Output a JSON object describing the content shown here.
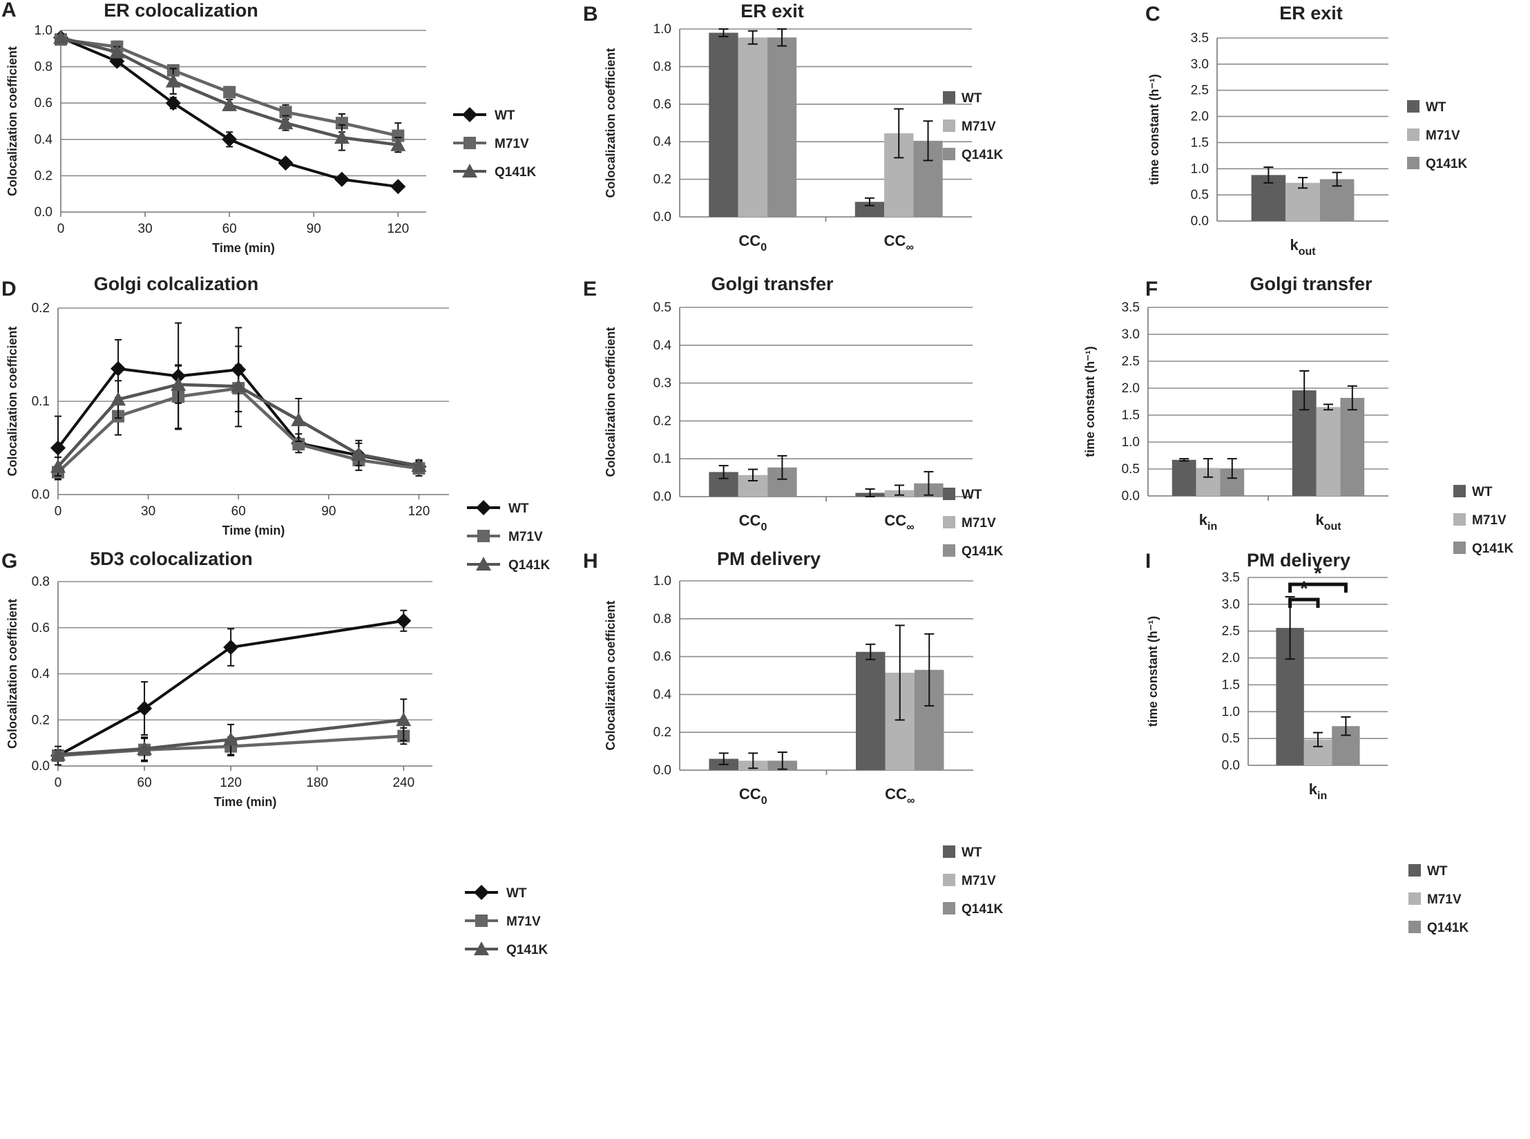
{
  "colors": {
    "WT_line": "#111111",
    "M71V_line": "#666666",
    "Q141K_line": "#555555",
    "WT_bar": "#5e5e5e",
    "M71V_bar": "#b3b3b3",
    "Q141K_bar": "#8e8e8e",
    "grid": "#8c8c8c",
    "axis": "#777777",
    "error": "#111111"
  },
  "chart_data": [
    {
      "id": "A",
      "type": "line",
      "letter": "A",
      "title": "ER colocalization",
      "xlabel": "Time (min)",
      "ylabel": "Colocalization coefficient",
      "x": [
        0,
        20,
        40,
        60,
        80,
        100,
        120
      ],
      "xticks": [
        0,
        30,
        60,
        90,
        120
      ],
      "xtick_labels": [
        "0",
        "30",
        "60",
        "90",
        "120"
      ],
      "xlim": [
        0,
        130
      ],
      "ylim": [
        0,
        1
      ],
      "yticks": [
        0,
        0.2,
        0.4,
        0.6,
        0.8,
        1.0
      ],
      "ytick_labels": [
        "0.0",
        "0.2",
        "0.4",
        "0.6",
        "0.8",
        "1.0"
      ],
      "series": [
        {
          "name": "WT",
          "marker": "diamond",
          "values": [
            0.96,
            0.83,
            0.6,
            0.4,
            0.27,
            0.18,
            0.14
          ],
          "errors": [
            0.02,
            0.02,
            0.03,
            0.04,
            0.02,
            0.01,
            0.01
          ]
        },
        {
          "name": "M71V",
          "marker": "square",
          "values": [
            0.95,
            0.91,
            0.78,
            0.66,
            0.55,
            0.49,
            0.42
          ],
          "errors": [
            0.02,
            0.03,
            0.02,
            0.02,
            0.04,
            0.05,
            0.07
          ]
        },
        {
          "name": "Q141K",
          "marker": "triangle",
          "values": [
            0.96,
            0.88,
            0.72,
            0.59,
            0.49,
            0.41,
            0.37
          ],
          "errors": [
            0.02,
            0.03,
            0.07,
            0.03,
            0.04,
            0.07,
            0.04
          ]
        }
      ],
      "legend": [
        "WT",
        "M71V",
        "Q141K"
      ]
    },
    {
      "id": "B",
      "type": "bar",
      "letter": "B",
      "title": "ER exit",
      "ylabel": "Colocalization coefficient",
      "categories": [
        "CC0",
        "CC∞"
      ],
      "category_base": [
        "CC",
        "CC"
      ],
      "category_sub": [
        "0",
        "∞"
      ],
      "ylim": [
        0,
        1
      ],
      "yticks": [
        0,
        0.2,
        0.4,
        0.6,
        0.8,
        1.0
      ],
      "ytick_labels": [
        "0.0",
        "0.2",
        "0.4",
        "0.6",
        "0.8",
        "1.0"
      ],
      "series": [
        {
          "name": "WT",
          "values": [
            0.98,
            0.08
          ],
          "errors": [
            0.02,
            0.02
          ]
        },
        {
          "name": "M71V",
          "values": [
            0.955,
            0.445
          ],
          "errors": [
            0.035,
            0.13
          ]
        },
        {
          "name": "Q141K",
          "values": [
            0.955,
            0.405
          ],
          "errors": [
            0.045,
            0.105
          ]
        }
      ],
      "legend": [
        "WT",
        "M71V",
        "Q141K"
      ]
    },
    {
      "id": "C",
      "type": "bar",
      "letter": "C",
      "title": "ER exit",
      "ylabel": "time constant (h⁻¹)",
      "categories": [
        "kout"
      ],
      "category_base": [
        "k"
      ],
      "category_sub": [
        "out"
      ],
      "ylim": [
        0,
        3.5
      ],
      "yticks": [
        0,
        0.5,
        1.0,
        1.5,
        2.0,
        2.5,
        3.0,
        3.5
      ],
      "ytick_labels": [
        "0.0",
        "0.5",
        "1.0",
        "1.5",
        "2.0",
        "2.5",
        "3.0",
        "3.5"
      ],
      "series": [
        {
          "name": "WT",
          "values": [
            0.88
          ],
          "errors": [
            0.15
          ]
        },
        {
          "name": "M71V",
          "values": [
            0.73
          ],
          "errors": [
            0.1
          ]
        },
        {
          "name": "Q141K",
          "values": [
            0.8
          ],
          "errors": [
            0.13
          ]
        }
      ],
      "legend": [
        "WT",
        "M71V",
        "Q141K"
      ]
    },
    {
      "id": "D",
      "type": "line",
      "letter": "D",
      "title": "Golgi colcalization",
      "xlabel": "Time (min)",
      "ylabel": "Colocalization coefficient",
      "x": [
        0,
        20,
        40,
        60,
        80,
        100,
        120
      ],
      "xticks": [
        0,
        30,
        60,
        90,
        120
      ],
      "xtick_labels": [
        "0",
        "30",
        "60",
        "90",
        "120"
      ],
      "xlim": [
        0,
        130
      ],
      "ylim": [
        0,
        0.2
      ],
      "yticks": [
        0,
        0.1,
        0.2
      ],
      "ytick_labels": [
        "0.0",
        "0.1",
        "0.2"
      ],
      "series": [
        {
          "name": "WT",
          "marker": "diamond",
          "values": [
            0.05,
            0.135,
            0.127,
            0.134,
            0.055,
            0.042,
            0.03
          ],
          "errors": [
            0.034,
            0.031,
            0.057,
            0.045,
            0.01,
            0.016,
            0.005
          ]
        },
        {
          "name": "M71V",
          "marker": "square",
          "values": [
            0.024,
            0.084,
            0.105,
            0.114,
            0.054,
            0.037,
            0.028
          ],
          "errors": [
            0.007,
            0.02,
            0.034,
            0.025,
            0.006,
            0.005,
            0.008
          ]
        },
        {
          "name": "Q141K",
          "marker": "triangle",
          "values": [
            0.03,
            0.102,
            0.118,
            0.116,
            0.08,
            0.043,
            0.031
          ],
          "errors": [
            0.01,
            0.02,
            0.02,
            0.043,
            0.023,
            0.012,
            0.006
          ]
        }
      ],
      "legend": [
        "WT",
        "M71V",
        "Q141K"
      ]
    },
    {
      "id": "E",
      "type": "bar",
      "letter": "E",
      "title": "Golgi transfer",
      "ylabel": "Colocalization coefficient",
      "categories": [
        "CC0",
        "CC∞"
      ],
      "category_base": [
        "CC",
        "CC"
      ],
      "category_sub": [
        "0",
        "∞"
      ],
      "ylim": [
        0,
        0.5
      ],
      "yticks": [
        0,
        0.1,
        0.2,
        0.3,
        0.4,
        0.5
      ],
      "ytick_labels": [
        "0.0",
        "0.1",
        "0.2",
        "0.3",
        "0.4",
        "0.5"
      ],
      "series": [
        {
          "name": "WT",
          "values": [
            0.065,
            0.01
          ],
          "errors": [
            0.017,
            0.01
          ]
        },
        {
          "name": "M71V",
          "values": [
            0.057,
            0.017
          ],
          "errors": [
            0.015,
            0.013
          ]
        },
        {
          "name": "Q141K",
          "values": [
            0.077,
            0.035
          ],
          "errors": [
            0.031,
            0.031
          ]
        }
      ],
      "legend": [
        "WT",
        "M71V",
        "Q141K"
      ]
    },
    {
      "id": "F",
      "type": "bar",
      "letter": "F",
      "title": "Golgi transfer",
      "ylabel": "time constant (h⁻¹)",
      "categories": [
        "kin",
        "kout"
      ],
      "category_base": [
        "k",
        "k"
      ],
      "category_sub": [
        "in",
        "out"
      ],
      "ylim": [
        0,
        3.5
      ],
      "yticks": [
        0,
        0.5,
        1.0,
        1.5,
        2.0,
        2.5,
        3.0,
        3.5
      ],
      "ytick_labels": [
        "0.0",
        "0.5",
        "1.0",
        "1.5",
        "2.0",
        "2.5",
        "3.0",
        "3.5"
      ],
      "series": [
        {
          "name": "WT",
          "values": [
            0.67,
            1.96
          ],
          "errors": [
            0.02,
            0.36
          ]
        },
        {
          "name": "M71V",
          "values": [
            0.52,
            1.65
          ],
          "errors": [
            0.17,
            0.05
          ]
        },
        {
          "name": "Q141K",
          "values": [
            0.51,
            1.82
          ],
          "errors": [
            0.18,
            0.22
          ]
        }
      ],
      "legend": [
        "WT",
        "M71V",
        "Q141K"
      ]
    },
    {
      "id": "G",
      "type": "line",
      "letter": "G",
      "title": "5D3 colocalization",
      "xlabel": "Time (min)",
      "ylabel": "Colocalization coefficient",
      "x": [
        0,
        60,
        120,
        240
      ],
      "xticks": [
        0,
        60,
        120,
        180,
        240
      ],
      "xtick_labels": [
        "0",
        "60",
        "120",
        "180",
        "240"
      ],
      "xlim": [
        0,
        260
      ],
      "ylim": [
        0,
        0.8
      ],
      "yticks": [
        0,
        0.2,
        0.4,
        0.6,
        0.8
      ],
      "ytick_labels": [
        "0.0",
        "0.2",
        "0.4",
        "0.6",
        "0.8"
      ],
      "series": [
        {
          "name": "WT",
          "marker": "diamond",
          "values": [
            0.045,
            0.25,
            0.515,
            0.63
          ],
          "errors": [
            0.04,
            0.115,
            0.08,
            0.045
          ]
        },
        {
          "name": "M71V",
          "marker": "square",
          "values": [
            0.045,
            0.07,
            0.085,
            0.13
          ],
          "errors": [
            0.02,
            0.05,
            0.04,
            0.035
          ]
        },
        {
          "name": "Q141K",
          "marker": "triangle",
          "values": [
            0.05,
            0.075,
            0.115,
            0.2
          ],
          "errors": [
            0.02,
            0.05,
            0.065,
            0.09
          ]
        }
      ],
      "legend": [
        "WT",
        "M71V",
        "Q141K"
      ]
    },
    {
      "id": "H",
      "type": "bar",
      "letter": "H",
      "title": "PM delivery",
      "ylabel": "Colocalization coefficient",
      "categories": [
        "CC0",
        "CC∞"
      ],
      "category_base": [
        "CC",
        "CC"
      ],
      "category_sub": [
        "0",
        "∞"
      ],
      "ylim": [
        0,
        1
      ],
      "yticks": [
        0,
        0.2,
        0.4,
        0.6,
        0.8,
        1.0
      ],
      "ytick_labels": [
        "0.0",
        "0.2",
        "0.4",
        "0.6",
        "0.8",
        "1.0"
      ],
      "series": [
        {
          "name": "WT",
          "values": [
            0.06,
            0.625
          ],
          "errors": [
            0.03,
            0.04
          ]
        },
        {
          "name": "M71V",
          "values": [
            0.05,
            0.515
          ],
          "errors": [
            0.04,
            0.25
          ]
        },
        {
          "name": "Q141K",
          "values": [
            0.05,
            0.53
          ],
          "errors": [
            0.045,
            0.19
          ]
        }
      ],
      "legend": [
        "WT",
        "M71V",
        "Q141K"
      ]
    },
    {
      "id": "I",
      "type": "bar",
      "letter": "I",
      "title": "PM delivery",
      "ylabel": "time constant (h⁻¹)",
      "categories": [
        "kin"
      ],
      "category_base": [
        "k"
      ],
      "category_sub": [
        "in"
      ],
      "ylim": [
        0,
        3.5
      ],
      "yticks": [
        0,
        0.5,
        1.0,
        1.5,
        2.0,
        2.5,
        3.0,
        3.5
      ],
      "ytick_labels": [
        "0.0",
        "0.5",
        "1.0",
        "1.5",
        "2.0",
        "2.5",
        "3.0",
        "3.5"
      ],
      "series": [
        {
          "name": "WT",
          "values": [
            2.56
          ],
          "errors": [
            0.58
          ]
        },
        {
          "name": "M71V",
          "values": [
            0.48
          ],
          "errors": [
            0.13
          ]
        },
        {
          "name": "Q141K",
          "values": [
            0.73
          ],
          "errors": [
            0.17
          ]
        }
      ],
      "legend": [
        "WT",
        "M71V",
        "Q141K"
      ],
      "annotations": [
        {
          "text": "*",
          "from": "WT",
          "to": "M71V"
        },
        {
          "text": "*",
          "from": "WT",
          "to": "Q141K"
        }
      ]
    }
  ]
}
